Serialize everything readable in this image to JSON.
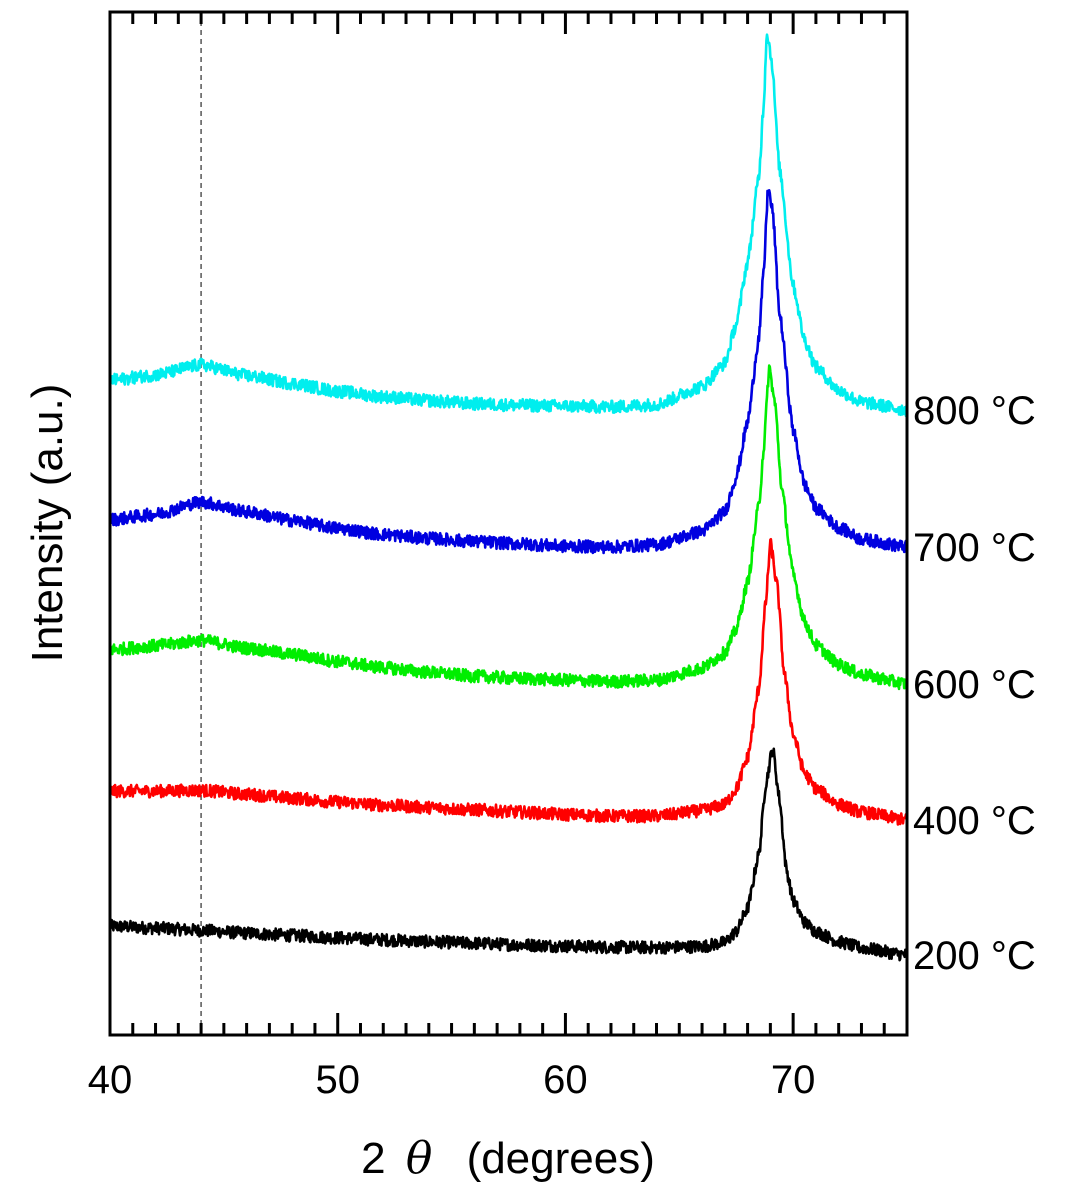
{
  "chart_data": {
    "type": "line",
    "title": "",
    "xlabel_number": "2",
    "xlabel_symbol": "θ",
    "xlabel_unit": "(degrees)",
    "ylabel": "Intensity (a.u.)",
    "xlim": [
      40,
      75
    ],
    "x_major_ticks": [
      40,
      50,
      60,
      70
    ],
    "x_tick_labels": [
      "40",
      "50",
      "60",
      "70"
    ],
    "x_minor_step": 1,
    "yticks_shown": false,
    "grid": false,
    "reference_line": {
      "x": 44,
      "style": "dashed",
      "color": "#555555"
    },
    "legend": "labels at right end of each curve",
    "series": [
      {
        "name": "200 °C",
        "color": "#000000",
        "x": [
          40,
          42,
          44,
          46,
          48,
          50,
          52,
          54,
          56,
          58,
          60,
          62,
          64,
          66,
          67,
          67.5,
          68,
          68.5,
          68.8,
          69.1,
          69.4,
          69.7,
          70,
          70.5,
          71,
          72,
          73,
          75
        ],
        "y": [
          0.37,
          0.345,
          0.315,
          0.28,
          0.25,
          0.22,
          0.195,
          0.17,
          0.15,
          0.13,
          0.115,
          0.1,
          0.095,
          0.11,
          0.16,
          0.3,
          0.6,
          1.3,
          2.2,
          2.65,
          2.0,
          1.1,
          0.7,
          0.42,
          0.3,
          0.17,
          0.09,
          0.0
        ]
      },
      {
        "name": "400 °C",
        "color": "#ff0000",
        "x": [
          40,
          42,
          44,
          46,
          48,
          50,
          52,
          54,
          56,
          58,
          60,
          62,
          64,
          66,
          67,
          67.5,
          68,
          68.5,
          68.8,
          69.0,
          69.3,
          69.6,
          70,
          70.5,
          71,
          72,
          73,
          75
        ],
        "y": [
          0.37,
          0.37,
          0.38,
          0.33,
          0.28,
          0.23,
          0.19,
          0.16,
          0.13,
          0.1,
          0.07,
          0.05,
          0.05,
          0.12,
          0.2,
          0.4,
          0.8,
          1.7,
          2.8,
          3.55,
          3.0,
          1.9,
          1.1,
          0.6,
          0.4,
          0.2,
          0.1,
          0.0
        ]
      },
      {
        "name": "600 °C",
        "color": "#00ee00",
        "x": [
          40,
          42,
          44,
          46,
          48,
          50,
          52,
          54,
          56,
          58,
          60,
          62,
          64,
          66,
          67,
          67.5,
          68,
          68.5,
          68.7,
          68.95,
          69.2,
          69.5,
          70,
          70.5,
          71,
          72,
          73,
          75
        ],
        "y": [
          0.44,
          0.49,
          0.56,
          0.46,
          0.38,
          0.29,
          0.21,
          0.15,
          0.1,
          0.07,
          0.05,
          0.03,
          0.05,
          0.2,
          0.4,
          0.7,
          1.3,
          2.3,
          3.0,
          4.05,
          3.6,
          2.5,
          1.4,
          0.8,
          0.5,
          0.25,
          0.12,
          0.0
        ]
      },
      {
        "name": "700 °C",
        "color": "#0000e0",
        "x": [
          40,
          42,
          44,
          46,
          48,
          50,
          52,
          54,
          56,
          58,
          60,
          62,
          64,
          66,
          67,
          67.5,
          68,
          68.5,
          68.7,
          68.9,
          69.1,
          69.4,
          70,
          70.5,
          71,
          72,
          73,
          75
        ],
        "y": [
          0.35,
          0.42,
          0.58,
          0.45,
          0.34,
          0.24,
          0.16,
          0.11,
          0.07,
          0.04,
          0.01,
          0.0,
          0.03,
          0.2,
          0.45,
          0.9,
          1.6,
          2.7,
          3.5,
          4.6,
          4.3,
          3.0,
          1.5,
          0.8,
          0.5,
          0.25,
          0.1,
          0.0
        ]
      },
      {
        "name": "800 °C",
        "color": "#00eeee",
        "x": [
          40,
          42,
          44,
          46,
          48,
          50,
          52,
          54,
          56,
          58,
          60,
          62,
          64,
          66,
          67,
          67.5,
          68,
          68.5,
          68.7,
          68.85,
          69.05,
          69.4,
          70,
          70.5,
          71,
          72,
          73,
          75
        ],
        "y": [
          0.38,
          0.45,
          0.58,
          0.44,
          0.34,
          0.24,
          0.17,
          0.12,
          0.08,
          0.06,
          0.05,
          0.04,
          0.07,
          0.3,
          0.6,
          1.1,
          1.9,
          3.0,
          3.9,
          4.85,
          4.5,
          3.1,
          1.6,
          0.9,
          0.55,
          0.25,
          0.1,
          0.0
        ]
      }
    ]
  }
}
